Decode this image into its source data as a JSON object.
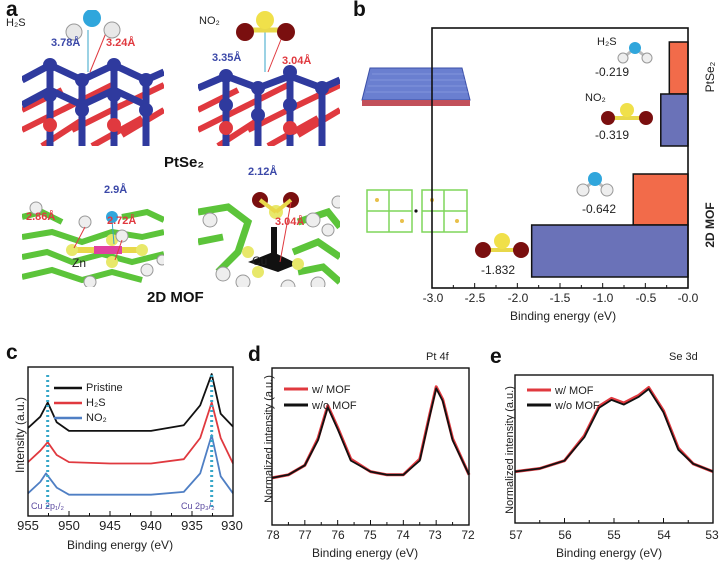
{
  "figure": {
    "panels": {
      "a": {
        "letter": "a",
        "top_left": {
          "molecule_label": "H₂S",
          "dist_blue": "3.78Å",
          "dist_red": "3.24Å"
        },
        "top_right": {
          "molecule_label": "NO₂",
          "dist_blue": "3.35Å",
          "dist_red": "3.04Å"
        },
        "bottom_left": {
          "dist_blue": "2.9Å",
          "dist_red_1": "2.86Å",
          "dist_red_2": "2.72Å",
          "atom_label": "Zn"
        },
        "bottom_right": {
          "dist_blue": "2.12Å",
          "dist_red": "3.04Å",
          "atom_label": "Cu"
        },
        "caption_top": "PtSe₂",
        "caption_bottom": "2D MOF"
      },
      "b": {
        "letter": "b"
      },
      "c": {
        "letter": "c"
      },
      "d": {
        "letter": "d"
      },
      "e": {
        "letter": "e"
      }
    },
    "colors": {
      "h2s_bar": "#f26b4a",
      "no2_bar": "#6a72b8",
      "pristine": "#111111",
      "h2s_line": "#e0393f",
      "no2_line": "#4f7fc4",
      "w_mof": "#e0393f",
      "wo_mof": "#111111",
      "marker_dotted": "#37a6c8",
      "peak_label": "#5b4aa0",
      "pt_blue": "#2f3a9e",
      "se_red": "#e0393f",
      "mof_green": "#5cc43a"
    }
  },
  "chart_data": [
    {
      "panel": "b",
      "type": "bar",
      "orientation": "horizontal",
      "title": "",
      "xlabel": "Binding energy (eV)",
      "ylabel": "",
      "xlim": [
        -3.0,
        0.0
      ],
      "xticks": [
        "-3.0",
        "-2.5",
        "-2.0",
        "-1.5",
        "-1.0",
        "-0.5",
        "-0.0"
      ],
      "groups": [
        "PtSe₂",
        "2D MOF"
      ],
      "series": [
        {
          "name": "H₂S",
          "values": [
            -0.219,
            -0.642
          ],
          "labels": [
            "-0.219",
            "-0.642"
          ]
        },
        {
          "name": "NO₂",
          "values": [
            -0.319,
            -1.832
          ],
          "labels": [
            "-0.319",
            "-1.832"
          ]
        }
      ],
      "molecule_labels": [
        "H₂S",
        "NO₂"
      ]
    },
    {
      "panel": "c",
      "type": "line",
      "title": "",
      "xlabel": "Binding energy (eV)",
      "ylabel": "Intensity (a.u.)",
      "xlim": [
        955,
        930
      ],
      "xticks": [
        "955",
        "950",
        "945",
        "940",
        "935",
        "930"
      ],
      "legend": [
        "Pristine",
        "H₂S",
        "NO₂"
      ],
      "series": [
        {
          "name": "Pristine",
          "x": [
            955,
            953.5,
            952.6,
            951.5,
            950,
            945,
            940,
            936,
            934,
            932.6,
            931.5,
            930
          ],
          "y": [
            0.62,
            0.7,
            0.8,
            0.66,
            0.6,
            0.6,
            0.6,
            0.64,
            0.78,
            1.0,
            0.72,
            0.63
          ]
        },
        {
          "name": "H₂S",
          "x": [
            955,
            953.5,
            952.6,
            951.5,
            950,
            945,
            940,
            936,
            934,
            932.6,
            931.5,
            930
          ],
          "y": [
            0.38,
            0.46,
            0.52,
            0.43,
            0.38,
            0.37,
            0.37,
            0.4,
            0.55,
            0.8,
            0.55,
            0.37
          ]
        },
        {
          "name": "NO₂",
          "x": [
            955,
            953.5,
            952.8,
            951.5,
            950,
            945,
            940,
            936,
            934,
            932.6,
            931.5,
            930
          ],
          "y": [
            0.16,
            0.24,
            0.3,
            0.2,
            0.15,
            0.15,
            0.15,
            0.17,
            0.3,
            0.57,
            0.28,
            0.16
          ]
        }
      ],
      "annotations": [
        "Cu 2p₁/₂",
        "Cu 2p₃/₂"
      ],
      "peak_markers": [
        952.6,
        932.6
      ]
    },
    {
      "panel": "d",
      "type": "line",
      "title": "Pt 4f",
      "xlabel": "Binding energy (eV)",
      "ylabel": "Normalized intensity (a.u.)",
      "xlim": [
        78,
        72
      ],
      "xticks": [
        "78",
        "77",
        "76",
        "75",
        "74",
        "73",
        "72"
      ],
      "legend": [
        "w/ MOF",
        "w/o MOF"
      ],
      "series": [
        {
          "name": "w/ MOF",
          "x": [
            78,
            77.5,
            77,
            76.6,
            76.3,
            76,
            75.6,
            75,
            74.5,
            74,
            73.5,
            73.2,
            73,
            72.8,
            72.5,
            72
          ],
          "y": [
            0.3,
            0.32,
            0.38,
            0.55,
            0.76,
            0.62,
            0.42,
            0.34,
            0.32,
            0.32,
            0.42,
            0.7,
            0.88,
            0.8,
            0.55,
            0.32
          ]
        },
        {
          "name": "w/o MOF",
          "x": [
            78,
            77.5,
            77,
            76.6,
            76.3,
            76,
            75.6,
            75,
            74.5,
            74,
            73.5,
            73.2,
            73,
            72.8,
            72.5,
            72
          ],
          "y": [
            0.3,
            0.32,
            0.38,
            0.54,
            0.75,
            0.61,
            0.41,
            0.34,
            0.32,
            0.32,
            0.41,
            0.69,
            0.87,
            0.79,
            0.54,
            0.32
          ]
        }
      ]
    },
    {
      "panel": "e",
      "type": "line",
      "title": "Se 3d",
      "xlabel": "Binding energy (eV)",
      "ylabel": "Normalized intensity (a.u.)",
      "xlim": [
        57,
        53
      ],
      "xticks": [
        "57",
        "56",
        "55",
        "54",
        "53"
      ],
      "legend": [
        "w/ MOF",
        "w/o MOF"
      ],
      "series": [
        {
          "name": "w/ MOF",
          "x": [
            57,
            56.5,
            56,
            55.6,
            55.3,
            55.05,
            54.8,
            54.5,
            54.3,
            54.0,
            53.7,
            53.4,
            53
          ],
          "y": [
            0.33,
            0.35,
            0.4,
            0.56,
            0.75,
            0.8,
            0.77,
            0.82,
            0.87,
            0.72,
            0.48,
            0.38,
            0.33
          ]
        },
        {
          "name": "w/o MOF",
          "x": [
            57,
            56.5,
            56,
            55.6,
            55.3,
            55.05,
            54.8,
            54.5,
            54.3,
            54.0,
            53.7,
            53.4,
            53
          ],
          "y": [
            0.33,
            0.35,
            0.4,
            0.55,
            0.74,
            0.79,
            0.76,
            0.81,
            0.86,
            0.71,
            0.47,
            0.38,
            0.33
          ]
        }
      ]
    }
  ]
}
